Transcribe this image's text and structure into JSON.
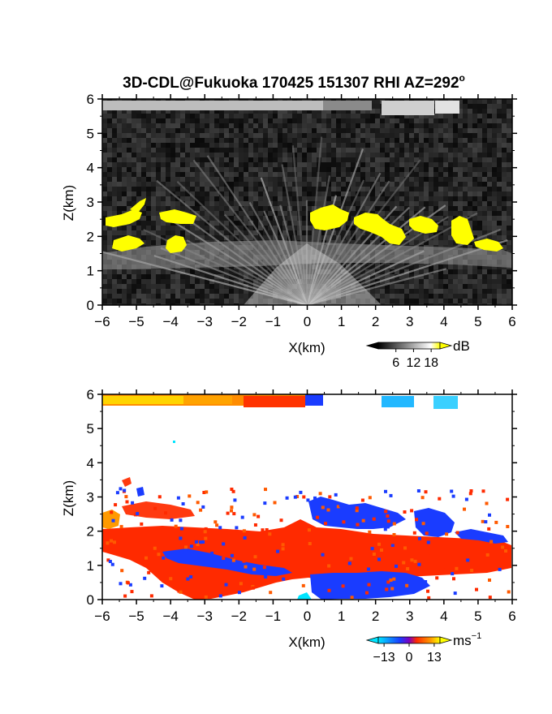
{
  "title": "3D-CDL@Fukuoka 170425 151307 RHI AZ=292",
  "title_superscript": "o",
  "charts": [
    {
      "type": "heatmap",
      "quantity": "reflectivity",
      "xlabel": "X(km)",
      "ylabel": "Z(km)",
      "xlim": [
        -6,
        6
      ],
      "ylim": [
        0,
        6
      ],
      "xticks": [
        -6,
        -5,
        -4,
        -3,
        -2,
        -1,
        0,
        1,
        2,
        3,
        4,
        5,
        6
      ],
      "yticks": [
        0,
        1,
        2,
        3,
        4,
        5,
        6
      ],
      "colorbar": {
        "unit": "dB",
        "ticks": [
          6,
          12,
          18
        ],
        "range": [
          0,
          21
        ]
      },
      "high_value_color": "#ffff00",
      "colors": [
        "#000000",
        "#ffffff",
        "#ffff00"
      ]
    },
    {
      "type": "heatmap",
      "quantity": "doppler velocity",
      "xlabel": "X(km)",
      "ylabel": "Z(km)",
      "xlim": [
        -6,
        6
      ],
      "ylim": [
        0,
        6
      ],
      "xticks": [
        -6,
        -5,
        -4,
        -3,
        -2,
        -1,
        0,
        1,
        2,
        3,
        4,
        5,
        6
      ],
      "yticks": [
        0,
        1,
        2,
        3,
        4,
        5,
        6
      ],
      "colorbar": {
        "unit": "ms",
        "unit_exponent": "−1",
        "ticks": [
          -13,
          0,
          13
        ],
        "tick_labels": [
          "−13",
          "0",
          "13"
        ],
        "range": [
          -16,
          16
        ]
      },
      "colors": [
        "#00e5ff",
        "#1a3cff",
        "#ff2a00",
        "#ffff00"
      ]
    }
  ]
}
